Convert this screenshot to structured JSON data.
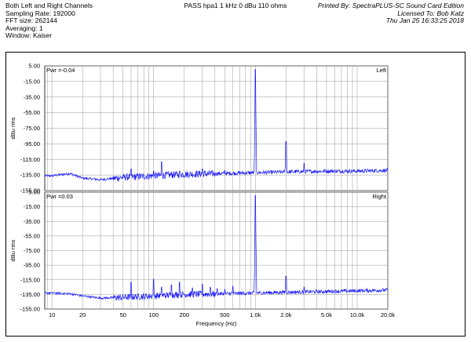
{
  "header": {
    "left": [
      "Both Left and Right Channels",
      "Sampling Rate: 192000",
      "FFT size: 262144",
      "Averaging: 1",
      "Window: Kaiser"
    ],
    "center": "PASS hpa1 1 kHz 0 dBu 110 ohms",
    "right": [
      "Printed By: SpectraPLUS-SC Sound Card Edition",
      "Licensed To: Bob Katz",
      "Thu Jan 25 16:33:25 2018"
    ]
  },
  "colors": {
    "trace": "#1a1aff",
    "grid": "#9a9a9a",
    "frame": "#000000"
  },
  "chart_data": [
    {
      "type": "line",
      "channel_label": "Left",
      "pwr_label": "Pwr =-0.04",
      "xlabel": "",
      "ylabel": "dBu rms",
      "xscale": "log",
      "xlim": [
        8.5,
        20000
      ],
      "ylim": [
        -155,
        5
      ],
      "x_tick_labels": [
        "10",
        "20",
        "50",
        "100",
        "200",
        "500",
        "1.0k",
        "2.0k",
        "5.0k",
        "10.0k",
        "20.0k"
      ],
      "y_tick_labels": [
        "5.00",
        "-15.00",
        "-35.00",
        "-55.00",
        "-75.00",
        "-95.00",
        "-115.00",
        "-135.00",
        "-155.00"
      ],
      "grid": true,
      "series": [
        {
          "noise_floor": [
            [
              10,
              -136
            ],
            [
              15,
              -133
            ],
            [
              20,
              -139
            ],
            [
              30,
              -141
            ],
            [
              50,
              -138
            ],
            [
              100,
              -136
            ],
            [
              200,
              -134
            ],
            [
              500,
              -133
            ],
            [
              1000,
              -132
            ],
            [
              2000,
              -131
            ],
            [
              5000,
              -130
            ],
            [
              10000,
              -130
            ],
            [
              20000,
              -129
            ]
          ],
          "peaks": [
            [
              1000,
              0.5
            ],
            [
              2000,
              -92
            ],
            [
              3000,
              -120
            ],
            [
              100,
              -130
            ],
            [
              120,
              -118
            ],
            [
              150,
              -132
            ],
            [
              300,
              -127
            ],
            [
              500,
              -129
            ],
            [
              60,
              -127
            ],
            [
              180,
              -130
            ]
          ]
        }
      ]
    },
    {
      "type": "line",
      "channel_label": "Right",
      "pwr_label": "Pwr =0.03",
      "xlabel": "Frequency (Hz)",
      "ylabel": "dBu rms",
      "xscale": "log",
      "xlim": [
        8.5,
        20000
      ],
      "ylim": [
        -155,
        5
      ],
      "x_tick_labels": [
        "10",
        "20",
        "50",
        "100",
        "200",
        "500",
        "1.0k",
        "2.0k",
        "5.0k",
        "10.0k",
        "20.0k"
      ],
      "y_tick_labels": [
        "5.00",
        "-15.00",
        "-35.00",
        "-55.00",
        "-75.00",
        "-95.00",
        "-115.00",
        "-135.00",
        "-155.00"
      ],
      "grid": true,
      "series": [
        {
          "noise_floor": [
            [
              10,
              -133
            ],
            [
              15,
              -134
            ],
            [
              20,
              -137
            ],
            [
              30,
              -140
            ],
            [
              50,
              -139
            ],
            [
              100,
              -137
            ],
            [
              200,
              -135
            ],
            [
              500,
              -134
            ],
            [
              1000,
              -133
            ],
            [
              2000,
              -132
            ],
            [
              5000,
              -131
            ],
            [
              10000,
              -130
            ],
            [
              20000,
              -129
            ]
          ],
          "peaks": [
            [
              1000,
              0.5
            ],
            [
              2000,
              -110
            ],
            [
              3000,
              -125
            ],
            [
              60,
              -118
            ],
            [
              100,
              -114
            ],
            [
              120,
              -125
            ],
            [
              150,
              -122
            ],
            [
              180,
              -118
            ],
            [
              240,
              -126
            ],
            [
              300,
              -121
            ],
            [
              360,
              -125
            ],
            [
              420,
              -127
            ],
            [
              500,
              -128
            ],
            [
              600,
              -124
            ]
          ]
        }
      ]
    }
  ]
}
